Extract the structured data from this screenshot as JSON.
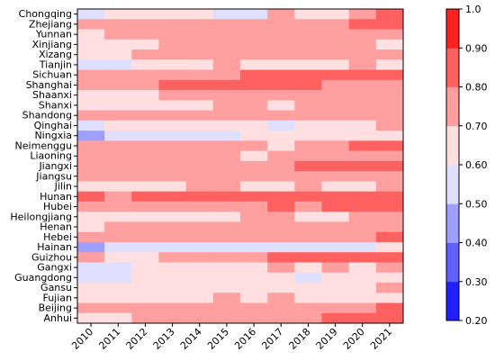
{
  "chart_data": {
    "type": "heatmap",
    "title": "",
    "xlabel": "",
    "ylabel": "",
    "x": [
      "2010",
      "2011",
      "2012",
      "2013",
      "2014",
      "2015",
      "2016",
      "2017",
      "2018",
      "2019",
      "2020",
      "2021"
    ],
    "y": [
      "Chongqing",
      "Zhejiang",
      "Yunnan",
      "Xinjiang",
      "Xizang",
      "Tianjin",
      "Sichuan",
      "Shanghai",
      "Shaanxi",
      "Shanxi",
      "Shandong",
      "Qinghai",
      "Ningxia",
      "Neimenggu",
      "Liaoning",
      "Jiangxi",
      "Jiangsu",
      "Jilin",
      "Hunan",
      "Hubei",
      "Heilongjiang",
      "Henan",
      "Hebei",
      "Hainan",
      "Guizhou",
      "Gangxi",
      "Guangdong",
      "Gansu",
      "Fujian",
      "Beijing",
      "Anhui"
    ],
    "values": [
      [
        0.55,
        0.65,
        0.65,
        0.65,
        0.65,
        0.55,
        0.55,
        0.75,
        0.65,
        0.65,
        0.75,
        0.85
      ],
      [
        0.75,
        0.75,
        0.75,
        0.75,
        0.75,
        0.75,
        0.75,
        0.75,
        0.75,
        0.75,
        0.85,
        0.85
      ],
      [
        0.65,
        0.75,
        0.75,
        0.75,
        0.75,
        0.75,
        0.75,
        0.75,
        0.75,
        0.75,
        0.75,
        0.75
      ],
      [
        0.65,
        0.65,
        0.65,
        0.75,
        0.75,
        0.75,
        0.75,
        0.75,
        0.75,
        0.75,
        0.75,
        0.65
      ],
      [
        0.65,
        0.65,
        0.75,
        0.75,
        0.75,
        0.75,
        0.75,
        0.75,
        0.75,
        0.75,
        0.75,
        0.75
      ],
      [
        0.55,
        0.55,
        0.65,
        0.65,
        0.65,
        0.75,
        0.65,
        0.65,
        0.65,
        0.65,
        0.75,
        0.65
      ],
      [
        0.75,
        0.75,
        0.75,
        0.75,
        0.75,
        0.75,
        0.85,
        0.85,
        0.85,
        0.85,
        0.85,
        0.85
      ],
      [
        0.75,
        0.75,
        0.75,
        0.85,
        0.85,
        0.85,
        0.85,
        0.85,
        0.85,
        0.75,
        0.75,
        0.75
      ],
      [
        0.65,
        0.65,
        0.65,
        0.75,
        0.75,
        0.75,
        0.75,
        0.75,
        0.75,
        0.75,
        0.75,
        0.75
      ],
      [
        0.65,
        0.65,
        0.65,
        0.65,
        0.65,
        0.75,
        0.75,
        0.65,
        0.75,
        0.75,
        0.75,
        0.75
      ],
      [
        0.75,
        0.75,
        0.75,
        0.75,
        0.75,
        0.75,
        0.75,
        0.75,
        0.75,
        0.75,
        0.75,
        0.75
      ],
      [
        0.55,
        0.65,
        0.65,
        0.65,
        0.65,
        0.65,
        0.65,
        0.55,
        0.65,
        0.65,
        0.65,
        0.75
      ],
      [
        0.45,
        0.55,
        0.55,
        0.55,
        0.55,
        0.55,
        0.65,
        0.65,
        0.65,
        0.65,
        0.65,
        0.65
      ],
      [
        0.75,
        0.75,
        0.75,
        0.75,
        0.75,
        0.75,
        0.75,
        0.65,
        0.75,
        0.75,
        0.85,
        0.85
      ],
      [
        0.75,
        0.75,
        0.75,
        0.75,
        0.75,
        0.75,
        0.65,
        0.75,
        0.75,
        0.75,
        0.75,
        0.75
      ],
      [
        0.75,
        0.75,
        0.75,
        0.75,
        0.75,
        0.75,
        0.75,
        0.75,
        0.85,
        0.85,
        0.85,
        0.85
      ],
      [
        0.75,
        0.75,
        0.75,
        0.75,
        0.75,
        0.75,
        0.75,
        0.75,
        0.75,
        0.75,
        0.75,
        0.75
      ],
      [
        0.65,
        0.65,
        0.65,
        0.65,
        0.75,
        0.75,
        0.65,
        0.65,
        0.75,
        0.65,
        0.65,
        0.75
      ],
      [
        0.85,
        0.75,
        0.85,
        0.85,
        0.85,
        0.85,
        0.85,
        0.85,
        0.85,
        0.85,
        0.85,
        0.85
      ],
      [
        0.75,
        0.75,
        0.75,
        0.75,
        0.75,
        0.75,
        0.75,
        0.85,
        0.75,
        0.85,
        0.85,
        0.85
      ],
      [
        0.65,
        0.65,
        0.65,
        0.65,
        0.65,
        0.65,
        0.75,
        0.75,
        0.65,
        0.65,
        0.75,
        0.75
      ],
      [
        0.65,
        0.75,
        0.75,
        0.75,
        0.75,
        0.75,
        0.75,
        0.75,
        0.75,
        0.75,
        0.75,
        0.75
      ],
      [
        0.75,
        0.75,
        0.75,
        0.75,
        0.75,
        0.75,
        0.75,
        0.75,
        0.75,
        0.75,
        0.75,
        0.85
      ],
      [
        0.45,
        0.55,
        0.55,
        0.55,
        0.55,
        0.55,
        0.55,
        0.55,
        0.55,
        0.55,
        0.55,
        0.65
      ],
      [
        0.75,
        0.65,
        0.65,
        0.75,
        0.75,
        0.75,
        0.75,
        0.85,
        0.85,
        0.85,
        0.85,
        0.85
      ],
      [
        0.55,
        0.55,
        0.65,
        0.65,
        0.65,
        0.65,
        0.65,
        0.75,
        0.65,
        0.75,
        0.65,
        0.75
      ],
      [
        0.55,
        0.55,
        0.65,
        0.65,
        0.65,
        0.65,
        0.65,
        0.65,
        0.55,
        0.65,
        0.65,
        0.65
      ],
      [
        0.65,
        0.65,
        0.65,
        0.65,
        0.65,
        0.65,
        0.65,
        0.65,
        0.65,
        0.65,
        0.65,
        0.75
      ],
      [
        0.65,
        0.65,
        0.65,
        0.65,
        0.65,
        0.75,
        0.65,
        0.75,
        0.65,
        0.65,
        0.65,
        0.65
      ],
      [
        0.75,
        0.75,
        0.75,
        0.75,
        0.75,
        0.75,
        0.75,
        0.75,
        0.75,
        0.75,
        0.75,
        0.85
      ],
      [
        0.65,
        0.65,
        0.75,
        0.75,
        0.75,
        0.75,
        0.75,
        0.75,
        0.75,
        0.85,
        0.85,
        0.85
      ]
    ],
    "colorbar": {
      "range": [
        0.2,
        1.0
      ],
      "ticks": [
        "0.20",
        "0.30",
        "0.40",
        "0.50",
        "0.60",
        "0.70",
        "0.80",
        "0.90",
        "1.0"
      ],
      "colormap": "bwr"
    },
    "grid": false,
    "legend": "colorbar-right"
  }
}
